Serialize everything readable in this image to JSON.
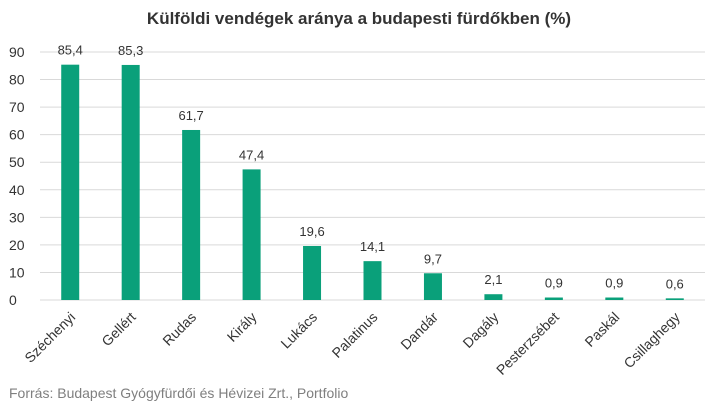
{
  "chart_data": {
    "type": "bar",
    "title": "Külföldi vendégek aránya a budapesti fürdőkben (%)",
    "categories": [
      "Széchenyi",
      "Gellért",
      "Rudas",
      "Király",
      "Lukács",
      "Palatinus",
      "Dandár",
      "Dagály",
      "Pesterzsébet",
      "Paskál",
      "Csillaghegy"
    ],
    "values": [
      85.4,
      85.3,
      61.7,
      47.4,
      19.6,
      14.1,
      9.7,
      2.1,
      0.9,
      0.9,
      0.6
    ],
    "data_labels": [
      "85,4",
      "85,3",
      "61,7",
      "47,4",
      "19,6",
      "14,1",
      "9,7",
      "2,1",
      "0,9",
      "0,9",
      "0,6"
    ],
    "yticks": [
      0,
      10,
      20,
      30,
      40,
      50,
      60,
      70,
      80,
      90
    ],
    "ylim": [
      0,
      90
    ],
    "xlabel": "",
    "ylabel": "",
    "grid": true,
    "bar_color": "#0aa07a",
    "grid_color": "#d9d9d9"
  },
  "source": "Forrás: Budapest Gyógyfürdői és Hévizei Zrt., Portfolio"
}
